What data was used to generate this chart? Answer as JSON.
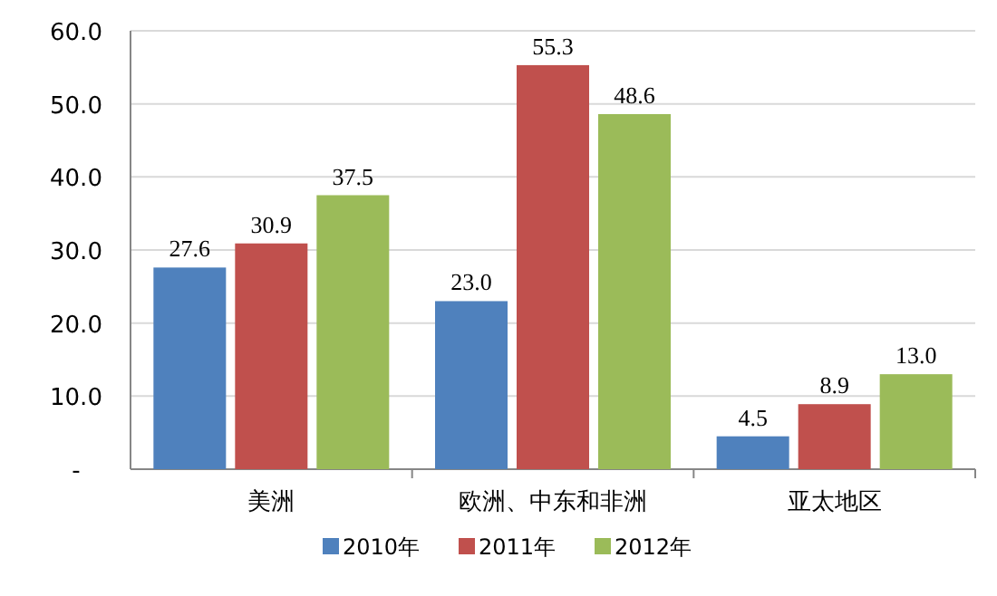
{
  "chart_data": {
    "type": "bar",
    "categories": [
      "美洲",
      "欧洲、中东和非洲",
      "亚太地区"
    ],
    "series": [
      {
        "name": "2010年",
        "color": "#4f81bd",
        "values": [
          27.6,
          23.0,
          4.5
        ],
        "value_labels": [
          "27.6",
          "23.0",
          "4.5"
        ]
      },
      {
        "name": "2011年",
        "color": "#c0504d",
        "values": [
          30.9,
          55.3,
          8.9
        ],
        "value_labels": [
          "30.9",
          "55.3",
          "8.9"
        ]
      },
      {
        "name": "2012年",
        "color": "#9bbb59",
        "values": [
          37.5,
          48.6,
          13.0
        ],
        "value_labels": [
          "37.5",
          "48.6",
          "13.0"
        ]
      }
    ],
    "ylim": [
      0,
      60
    ],
    "yticks": [
      {
        "value": 0,
        "label": "-"
      },
      {
        "value": 10,
        "label": "10.0"
      },
      {
        "value": 20,
        "label": "20.0"
      },
      {
        "value": 30,
        "label": "30.0"
      },
      {
        "value": 40,
        "label": "40.0"
      },
      {
        "value": 50,
        "label": "50.0"
      },
      {
        "value": 60,
        "label": "60.0"
      }
    ],
    "grid": "y",
    "legend": "bottom"
  }
}
